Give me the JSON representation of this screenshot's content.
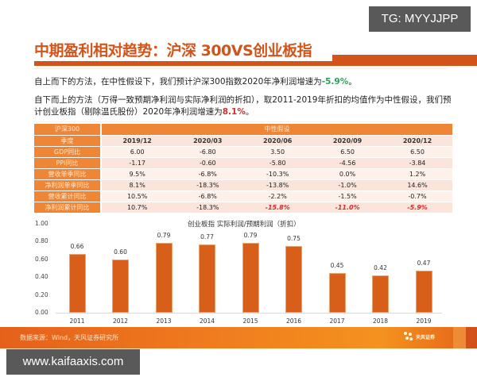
{
  "watermarks": {
    "top": "TG: MYYJJPP",
    "bottom": "www.kaifaaxis.com"
  },
  "header": {
    "title": "中期盈利相对趋势：沪深 300VS创业板指"
  },
  "paragraphs": {
    "p1_prefix": "自上而下的方法，在中性假设下，我们预计沪深300指数2020年净利润增速为",
    "p1_value": "-5.9%",
    "p1_suffix": "。",
    "p2_prefix": "自下而上的方法（万得一致预期净利润与实际净利润的折扣），取2011-2019年折扣的均值作为中性假设，我们预计创业板指（剔除温氏股份）2020年净利润增速为",
    "p2_value": "8.1%",
    "p2_suffix": "。"
  },
  "table": {
    "title_cell": "沪深300",
    "span_header": "中性假设",
    "quarter_label": "季度",
    "columns": [
      "2019/12",
      "2020/03",
      "2020/06",
      "2020/09",
      "2020/12"
    ],
    "rows": [
      {
        "label": "GDP同比",
        "values": [
          "6.00",
          "-6.80",
          "3.50",
          "6.50",
          "6.50"
        ]
      },
      {
        "label": "PPI同比",
        "values": [
          "-1.17",
          "-0.60",
          "-5.80",
          "-4.56",
          "-3.84"
        ]
      },
      {
        "label": "营收单季同比",
        "values": [
          "9.5%",
          "-6.8%",
          "-10.3%",
          "0.0%",
          "1.2%"
        ]
      },
      {
        "label": "净利润单季同比",
        "values": [
          "8.1%",
          "-18.3%",
          "-13.8%",
          "-1.0%",
          "14.6%"
        ]
      },
      {
        "label": "营收累计同比",
        "values": [
          "10.5%",
          "-6.8%",
          "-2.2%",
          "-1.5%",
          "-0.7%"
        ]
      },
      {
        "label": "净利润累计同比",
        "values": [
          "10.7%",
          "-18.3%",
          "-15.8%",
          "-11.0%",
          "-5.9%"
        ]
      }
    ]
  },
  "chart_data": {
    "type": "bar",
    "title": "创业板指 实际利润/预期利润（折扣）",
    "categories": [
      "2011",
      "2012",
      "2013",
      "2014",
      "2015",
      "2016",
      "2017",
      "2018",
      "2019"
    ],
    "values": [
      0.66,
      0.6,
      0.79,
      0.77,
      0.79,
      0.75,
      0.45,
      0.42,
      0.47
    ],
    "value_labels": [
      "0.66",
      "0.60",
      "0.79",
      "0.77",
      "0.79",
      "0.75",
      "0.45",
      "0.42",
      "0.47"
    ],
    "yticks": [
      "1.00",
      "0.80",
      "0.60",
      "0.40",
      "0.20",
      "0.00"
    ],
    "xlabel": "",
    "ylabel": "",
    "ylim": [
      0,
      1.0
    ],
    "grid": false,
    "legend": "none",
    "bar_color": "#d85f1a"
  },
  "footer": {
    "source": "数据来源：Wind，天风证券研究所",
    "logo_text": "天风证券"
  },
  "colors": {
    "accent": "#d2541b",
    "table_header": "#ef8636",
    "positive_green": "#2e9e5a",
    "negative_red": "#d22d2d"
  }
}
